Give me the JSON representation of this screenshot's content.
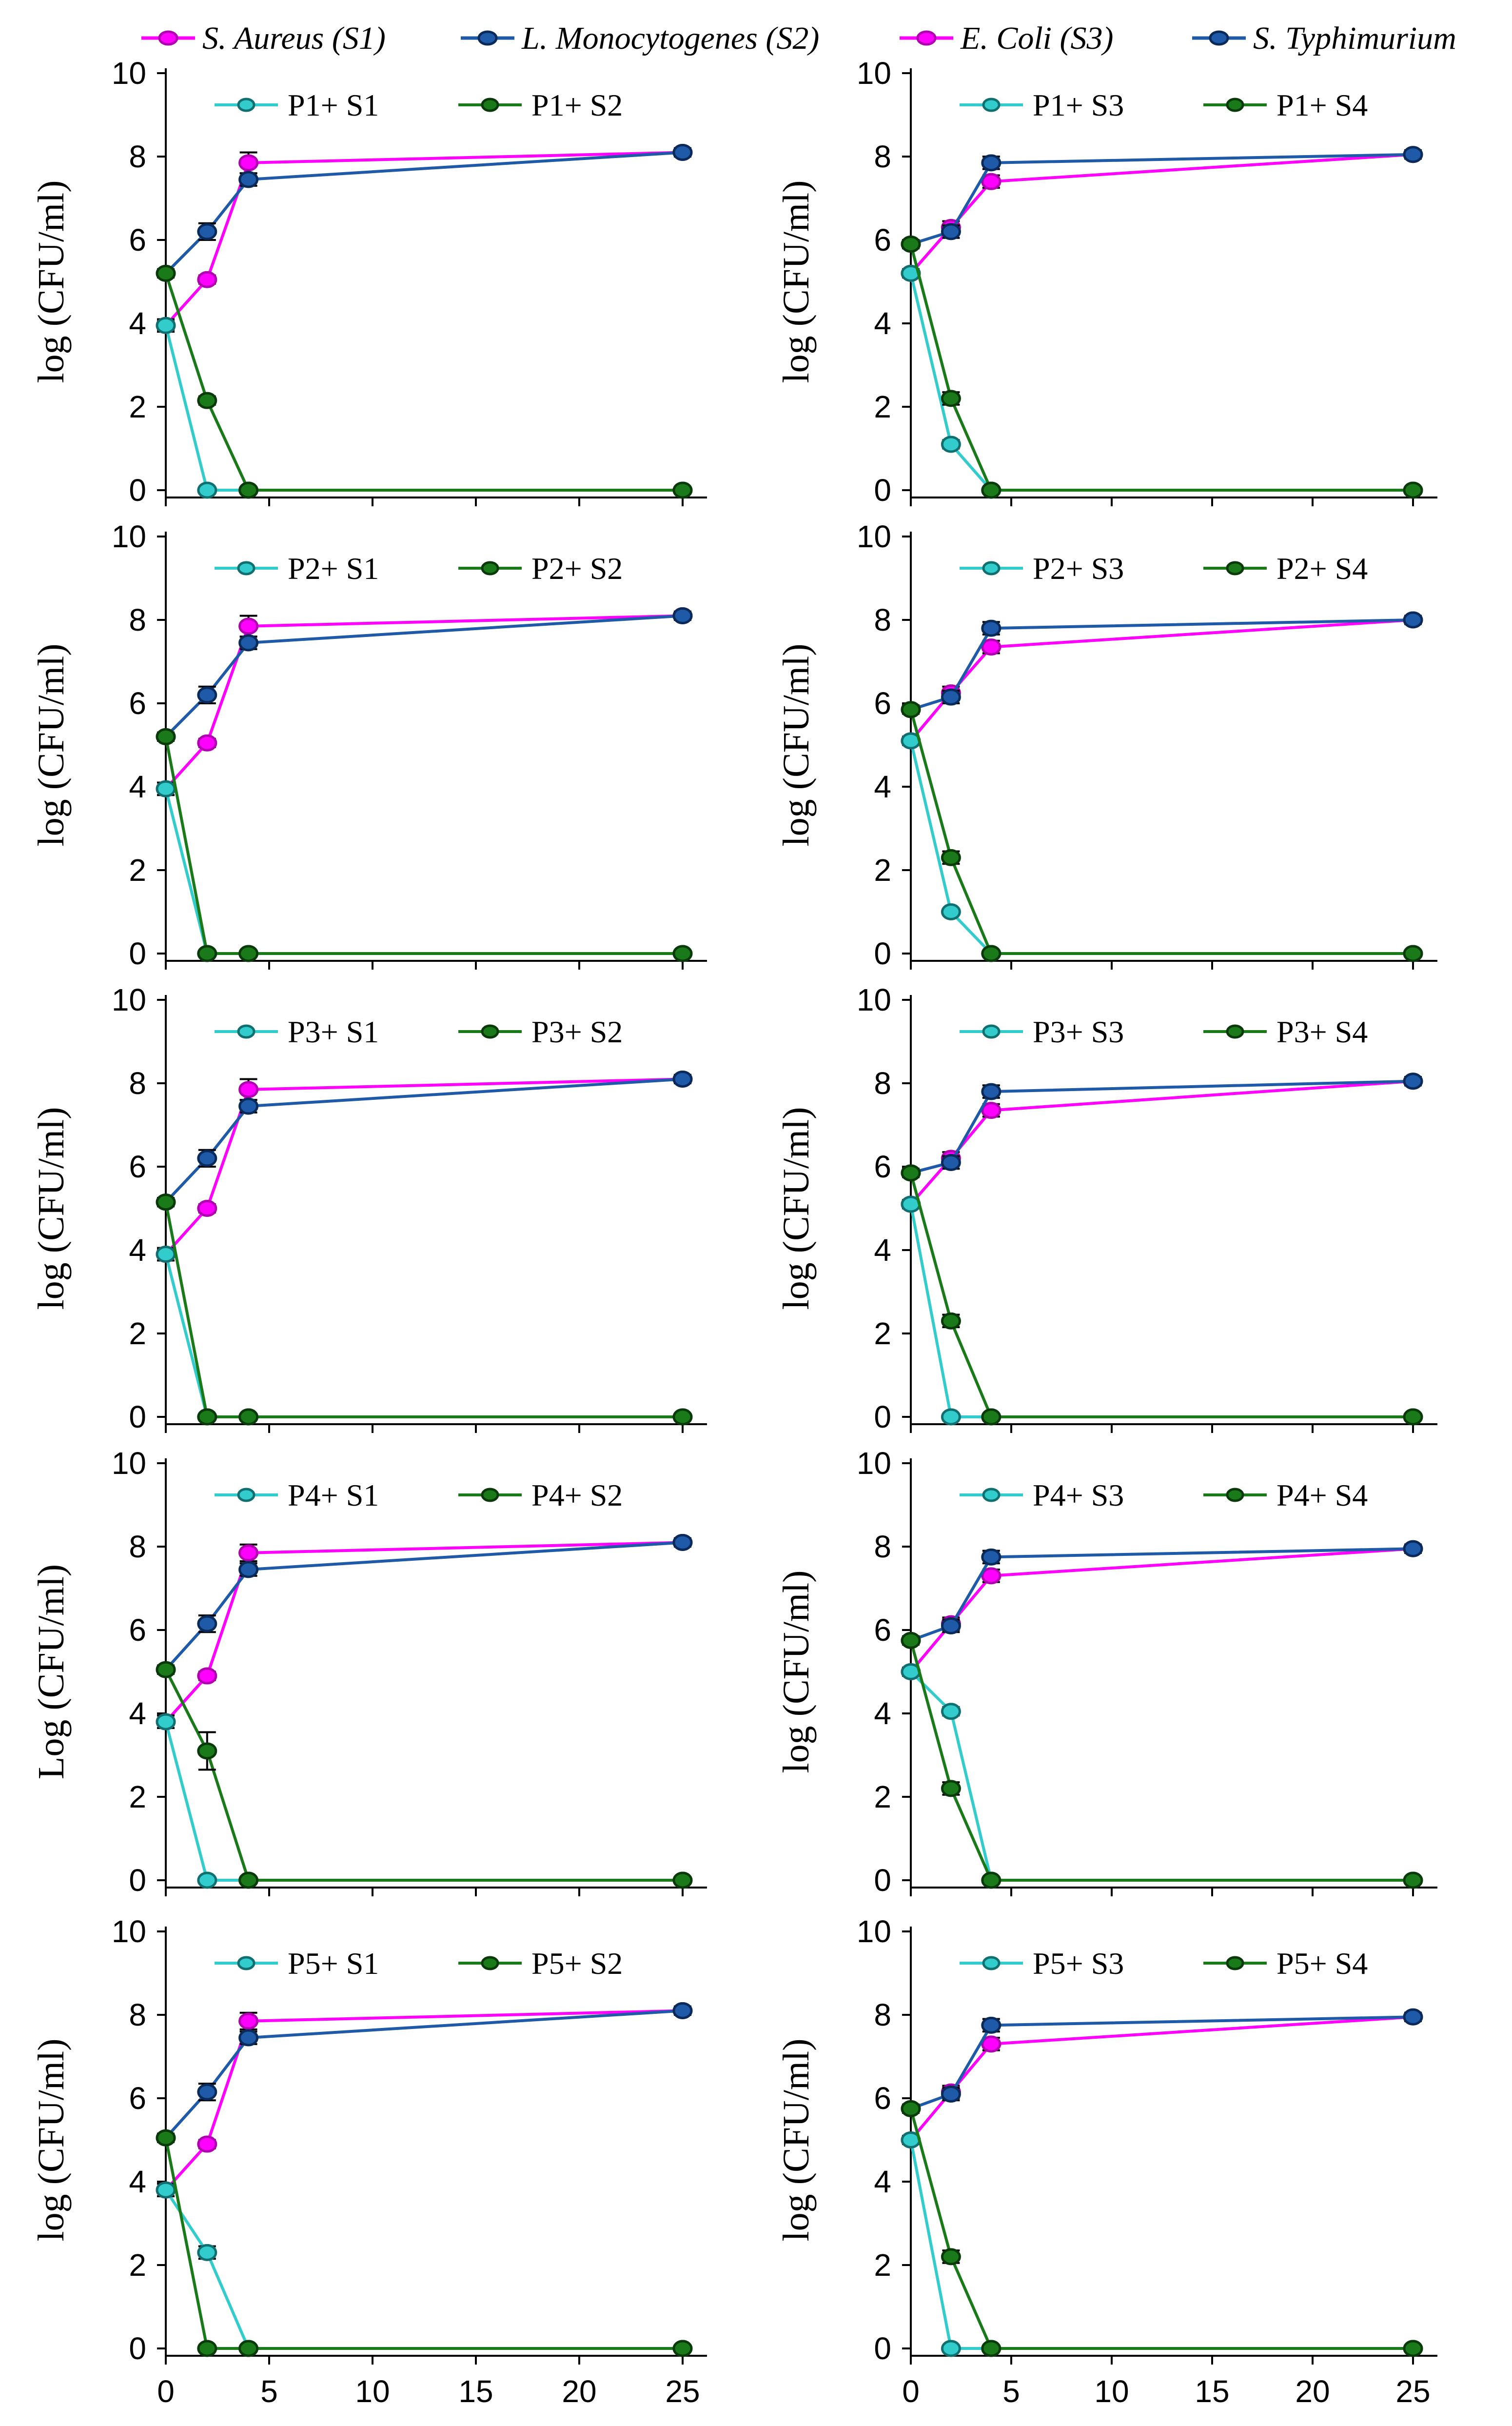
{
  "colors": {
    "s1": "#ff00ff",
    "s1_dark": "#b000b0",
    "s2": "#1e5aa8",
    "s2_dark": "#0a2a5a",
    "phage_s1": "#33cccc",
    "phage_s1_dark": "#107070",
    "phage_s2": "#1a7a1a",
    "phage_s2_dark": "#0a3a0a",
    "axis": "#000000"
  },
  "legend": {
    "items": [
      {
        "label": "S. Aureus (S1)",
        "color": "s1"
      },
      {
        "label": "L. Monocytogenes (S2)",
        "color": "s2"
      },
      {
        "label": "E. Coli (S3)",
        "color": "s1"
      },
      {
        "label": "S. Typhimurium",
        "color": "s2"
      }
    ]
  },
  "chart_data": [
    {
      "type": "line",
      "ylabel": "log (CFU/ml)",
      "xlim": [
        0,
        25
      ],
      "ylim": [
        0,
        10
      ],
      "show_xticks": false,
      "legend": [
        "P1+ S1",
        "P1+ S2"
      ],
      "series": [
        {
          "name": "S. Aureus (S1)",
          "color": "s1",
          "x": [
            0,
            2,
            4,
            25
          ],
          "y": [
            3.95,
            5.05,
            7.85,
            8.1
          ],
          "err": [
            0.15,
            0.1,
            0.25,
            0.1
          ]
        },
        {
          "name": "L. Monocytogenes (S2)",
          "color": "s2",
          "x": [
            0,
            2,
            4,
            25
          ],
          "y": [
            5.2,
            6.2,
            7.45,
            8.1
          ],
          "err": [
            0.1,
            0.2,
            0.15,
            0.1
          ]
        },
        {
          "name": "P1+ S1",
          "color": "phage_s1",
          "x": [
            0,
            2,
            4,
            25
          ],
          "y": [
            3.95,
            0,
            0,
            0
          ],
          "err": [
            0.1,
            0,
            0,
            0
          ]
        },
        {
          "name": "P1+ S2",
          "color": "phage_s2",
          "x": [
            0,
            2,
            4,
            25
          ],
          "y": [
            5.2,
            2.15,
            0,
            0
          ],
          "err": [
            0.1,
            0.1,
            0,
            0
          ]
        }
      ]
    },
    {
      "type": "line",
      "ylabel": "log (CFU/ml)",
      "xlim": [
        0,
        25
      ],
      "ylim": [
        0,
        10
      ],
      "show_xticks": false,
      "legend": [
        "P1+ S3",
        "P1+ S4"
      ],
      "series": [
        {
          "name": "E. Coli (S3)",
          "color": "s1",
          "x": [
            0,
            2,
            4,
            25
          ],
          "y": [
            5.2,
            6.3,
            7.4,
            8.05
          ],
          "err": [
            0.1,
            0.15,
            0.15,
            0.1
          ]
        },
        {
          "name": "S. Typhimurium",
          "color": "s2",
          "x": [
            0,
            2,
            4,
            25
          ],
          "y": [
            5.9,
            6.2,
            7.85,
            8.05
          ],
          "err": [
            0.1,
            0.15,
            0.15,
            0.1
          ]
        },
        {
          "name": "P1+ S3",
          "color": "phage_s1",
          "x": [
            0,
            2,
            4,
            25
          ],
          "y": [
            5.2,
            1.1,
            0,
            0
          ],
          "err": [
            0.1,
            0.1,
            0,
            0
          ]
        },
        {
          "name": "P1+ S4",
          "color": "phage_s2",
          "x": [
            0,
            2,
            4,
            25
          ],
          "y": [
            5.9,
            2.2,
            0,
            0
          ],
          "err": [
            0.1,
            0.15,
            0,
            0
          ]
        }
      ]
    },
    {
      "type": "line",
      "ylabel": "log (CFU/ml)",
      "xlim": [
        0,
        25
      ],
      "ylim": [
        0,
        10
      ],
      "show_xticks": false,
      "legend": [
        "P2+ S1",
        "P2+ S2"
      ],
      "series": [
        {
          "name": "S. Aureus (S1)",
          "color": "s1",
          "x": [
            0,
            2,
            4,
            25
          ],
          "y": [
            3.95,
            5.05,
            7.85,
            8.1
          ],
          "err": [
            0.15,
            0.1,
            0.25,
            0.1
          ]
        },
        {
          "name": "L. Monocytogenes (S2)",
          "color": "s2",
          "x": [
            0,
            2,
            4,
            25
          ],
          "y": [
            5.2,
            6.2,
            7.45,
            8.1
          ],
          "err": [
            0.1,
            0.2,
            0.15,
            0.1
          ]
        },
        {
          "name": "P2+ S1",
          "color": "phage_s1",
          "x": [
            0,
            2,
            4,
            25
          ],
          "y": [
            3.95,
            0,
            0,
            0
          ],
          "err": [
            0.15,
            0,
            0,
            0
          ]
        },
        {
          "name": "P2+ S2",
          "color": "phage_s2",
          "x": [
            0,
            2,
            4,
            25
          ],
          "y": [
            5.2,
            0,
            0,
            0
          ],
          "err": [
            0.1,
            0,
            0,
            0
          ]
        }
      ]
    },
    {
      "type": "line",
      "ylabel": "log (CFU/ml)",
      "xlim": [
        0,
        25
      ],
      "ylim": [
        0,
        10
      ],
      "show_xticks": false,
      "legend": [
        "P2+ S3",
        "P2+ S4"
      ],
      "series": [
        {
          "name": "E. Coli (S3)",
          "color": "s1",
          "x": [
            0,
            2,
            4,
            25
          ],
          "y": [
            5.1,
            6.25,
            7.35,
            8.0
          ],
          "err": [
            0.1,
            0.15,
            0.15,
            0.1
          ]
        },
        {
          "name": "S. Typhimurium",
          "color": "s2",
          "x": [
            0,
            2,
            4,
            25
          ],
          "y": [
            5.85,
            6.15,
            7.8,
            8.0
          ],
          "err": [
            0.1,
            0.15,
            0.15,
            0.1
          ]
        },
        {
          "name": "P2+ S3",
          "color": "phage_s1",
          "x": [
            0,
            2,
            4,
            25
          ],
          "y": [
            5.1,
            1.0,
            0,
            0
          ],
          "err": [
            0.1,
            0.05,
            0,
            0
          ]
        },
        {
          "name": "P2+ S4",
          "color": "phage_s2",
          "x": [
            0,
            2,
            4,
            25
          ],
          "y": [
            5.85,
            2.3,
            0,
            0
          ],
          "err": [
            0.1,
            0.15,
            0,
            0
          ]
        }
      ]
    },
    {
      "type": "line",
      "ylabel": "log (CFU/ml)",
      "xlim": [
        0,
        25
      ],
      "ylim": [
        0,
        10
      ],
      "show_xticks": false,
      "legend": [
        "P3+ S1",
        "P3+ S2"
      ],
      "series": [
        {
          "name": "S. Aureus (S1)",
          "color": "s1",
          "x": [
            0,
            2,
            4,
            25
          ],
          "y": [
            3.9,
            5.0,
            7.85,
            8.1
          ],
          "err": [
            0.15,
            0.1,
            0.25,
            0.1
          ]
        },
        {
          "name": "L. Monocytogenes (S2)",
          "color": "s2",
          "x": [
            0,
            2,
            4,
            25
          ],
          "y": [
            5.15,
            6.2,
            7.45,
            8.1
          ],
          "err": [
            0.1,
            0.2,
            0.15,
            0.1
          ]
        },
        {
          "name": "P3+ S1",
          "color": "phage_s1",
          "x": [
            0,
            2,
            4,
            25
          ],
          "y": [
            3.9,
            0,
            0,
            0
          ],
          "err": [
            0.15,
            0,
            0,
            0
          ]
        },
        {
          "name": "P3+ S2",
          "color": "phage_s2",
          "x": [
            0,
            2,
            4,
            25
          ],
          "y": [
            5.15,
            0,
            0,
            0
          ],
          "err": [
            0.1,
            0,
            0,
            0
          ]
        }
      ]
    },
    {
      "type": "line",
      "ylabel": "log (CFU/ml)",
      "xlim": [
        0,
        25
      ],
      "ylim": [
        0,
        10
      ],
      "show_xticks": false,
      "legend": [
        "P3+ S3",
        "P3+ S4"
      ],
      "series": [
        {
          "name": "E. Coli (S3)",
          "color": "s1",
          "x": [
            0,
            2,
            4,
            25
          ],
          "y": [
            5.1,
            6.2,
            7.35,
            8.05
          ],
          "err": [
            0.1,
            0.15,
            0.15,
            0.1
          ]
        },
        {
          "name": "S. Typhimurium",
          "color": "s2",
          "x": [
            0,
            2,
            4,
            25
          ],
          "y": [
            5.85,
            6.1,
            7.8,
            8.05
          ],
          "err": [
            0.1,
            0.15,
            0.15,
            0.1
          ]
        },
        {
          "name": "P3+ S3",
          "color": "phage_s1",
          "x": [
            0,
            2,
            4,
            25
          ],
          "y": [
            5.1,
            0,
            0,
            0
          ],
          "err": [
            0.1,
            0,
            0,
            0
          ]
        },
        {
          "name": "P3+ S4",
          "color": "phage_s2",
          "x": [
            0,
            2,
            4,
            25
          ],
          "y": [
            5.85,
            2.3,
            0,
            0
          ],
          "err": [
            0.1,
            0.15,
            0,
            0
          ]
        }
      ]
    },
    {
      "type": "line",
      "ylabel": "Log (CFU/ml)",
      "xlim": [
        0,
        25
      ],
      "ylim": [
        0,
        10
      ],
      "show_xticks": false,
      "legend": [
        "P4+ S1",
        "P4+ S2"
      ],
      "series": [
        {
          "name": "S. Aureus (S1)",
          "color": "s1",
          "x": [
            0,
            2,
            4,
            25
          ],
          "y": [
            3.8,
            4.9,
            7.85,
            8.1
          ],
          "err": [
            0.15,
            0.1,
            0.2,
            0.1
          ]
        },
        {
          "name": "L. Monocytogenes (S2)",
          "color": "s2",
          "x": [
            0,
            2,
            4,
            25
          ],
          "y": [
            5.05,
            6.15,
            7.45,
            8.1
          ],
          "err": [
            0.1,
            0.2,
            0.15,
            0.1
          ]
        },
        {
          "name": "P4+ S1",
          "color": "phage_s1",
          "x": [
            0,
            2,
            4,
            25
          ],
          "y": [
            3.8,
            0,
            0,
            0
          ],
          "err": [
            0.15,
            0,
            0,
            0
          ]
        },
        {
          "name": "P4+ S2",
          "color": "phage_s2",
          "x": [
            0,
            2,
            4,
            25
          ],
          "y": [
            5.05,
            3.1,
            0,
            0
          ],
          "err": [
            0.1,
            0.45,
            0,
            0
          ]
        }
      ]
    },
    {
      "type": "line",
      "ylabel": "log (CFU/ml)",
      "xlim": [
        0,
        25
      ],
      "ylim": [
        0,
        10
      ],
      "show_xticks": false,
      "legend": [
        "P4+ S3",
        "P4+ S4"
      ],
      "series": [
        {
          "name": "E. Coli (S3)",
          "color": "s1",
          "x": [
            0,
            2,
            4,
            25
          ],
          "y": [
            5.0,
            6.15,
            7.3,
            7.95
          ],
          "err": [
            0.1,
            0.15,
            0.15,
            0.1
          ]
        },
        {
          "name": "S. Typhimurium",
          "color": "s2",
          "x": [
            0,
            2,
            4,
            25
          ],
          "y": [
            5.75,
            6.1,
            7.75,
            7.95
          ],
          "err": [
            0.1,
            0.15,
            0.15,
            0.1
          ]
        },
        {
          "name": "P4+ S3",
          "color": "phage_s1",
          "x": [
            0,
            2,
            4,
            25
          ],
          "y": [
            5.0,
            4.05,
            0,
            0
          ],
          "err": [
            0.1,
            0.1,
            0,
            0
          ]
        },
        {
          "name": "P4+ S4",
          "color": "phage_s2",
          "x": [
            0,
            2,
            4,
            25
          ],
          "y": [
            5.75,
            2.2,
            0,
            0
          ],
          "err": [
            0.1,
            0.15,
            0,
            0
          ]
        }
      ]
    },
    {
      "type": "line",
      "ylabel": "log (CFU/ml)",
      "xlim": [
        0,
        25
      ],
      "ylim": [
        0,
        10
      ],
      "show_xticks": true,
      "xticks": [
        0,
        5,
        10,
        15,
        20,
        25
      ],
      "legend": [
        "P5+ S1",
        "P5+ S2"
      ],
      "series": [
        {
          "name": "S. Aureus (S1)",
          "color": "s1",
          "x": [
            0,
            2,
            4,
            25
          ],
          "y": [
            3.8,
            4.9,
            7.85,
            8.1
          ],
          "err": [
            0.15,
            0.1,
            0.2,
            0.1
          ]
        },
        {
          "name": "L. Monocytogenes (S2)",
          "color": "s2",
          "x": [
            0,
            2,
            4,
            25
          ],
          "y": [
            5.05,
            6.15,
            7.45,
            8.1
          ],
          "err": [
            0.1,
            0.2,
            0.15,
            0.1
          ]
        },
        {
          "name": "P5+ S1",
          "color": "phage_s1",
          "x": [
            0,
            2,
            4,
            25
          ],
          "y": [
            3.8,
            2.3,
            0,
            0
          ],
          "err": [
            0.15,
            0.15,
            0,
            0
          ]
        },
        {
          "name": "P5+ S2",
          "color": "phage_s2",
          "x": [
            0,
            2,
            4,
            25
          ],
          "y": [
            5.05,
            0,
            0,
            0
          ],
          "err": [
            0.1,
            0,
            0,
            0
          ]
        }
      ]
    },
    {
      "type": "line",
      "ylabel": "log (CFU/ml)",
      "xlim": [
        0,
        25
      ],
      "ylim": [
        0,
        10
      ],
      "show_xticks": true,
      "xticks": [
        0,
        5,
        10,
        15,
        20,
        25
      ],
      "legend": [
        "P5+ S3",
        "P5+ S4"
      ],
      "series": [
        {
          "name": "E. Coli (S3)",
          "color": "s1",
          "x": [
            0,
            2,
            4,
            25
          ],
          "y": [
            5.0,
            6.15,
            7.3,
            7.95
          ],
          "err": [
            0.1,
            0.15,
            0.15,
            0.1
          ]
        },
        {
          "name": "S. Typhimurium",
          "color": "s2",
          "x": [
            0,
            2,
            4,
            25
          ],
          "y": [
            5.75,
            6.1,
            7.75,
            7.95
          ],
          "err": [
            0.1,
            0.15,
            0.15,
            0.1
          ]
        },
        {
          "name": "P5+ S3",
          "color": "phage_s1",
          "x": [
            0,
            2,
            4,
            25
          ],
          "y": [
            5.0,
            0,
            0,
            0
          ],
          "err": [
            0.1,
            0,
            0,
            0
          ]
        },
        {
          "name": "P5+ S4",
          "color": "phage_s2",
          "x": [
            0,
            2,
            4,
            25
          ],
          "y": [
            5.75,
            2.2,
            0,
            0
          ],
          "err": [
            0.1,
            0.15,
            0,
            0
          ]
        }
      ]
    }
  ]
}
